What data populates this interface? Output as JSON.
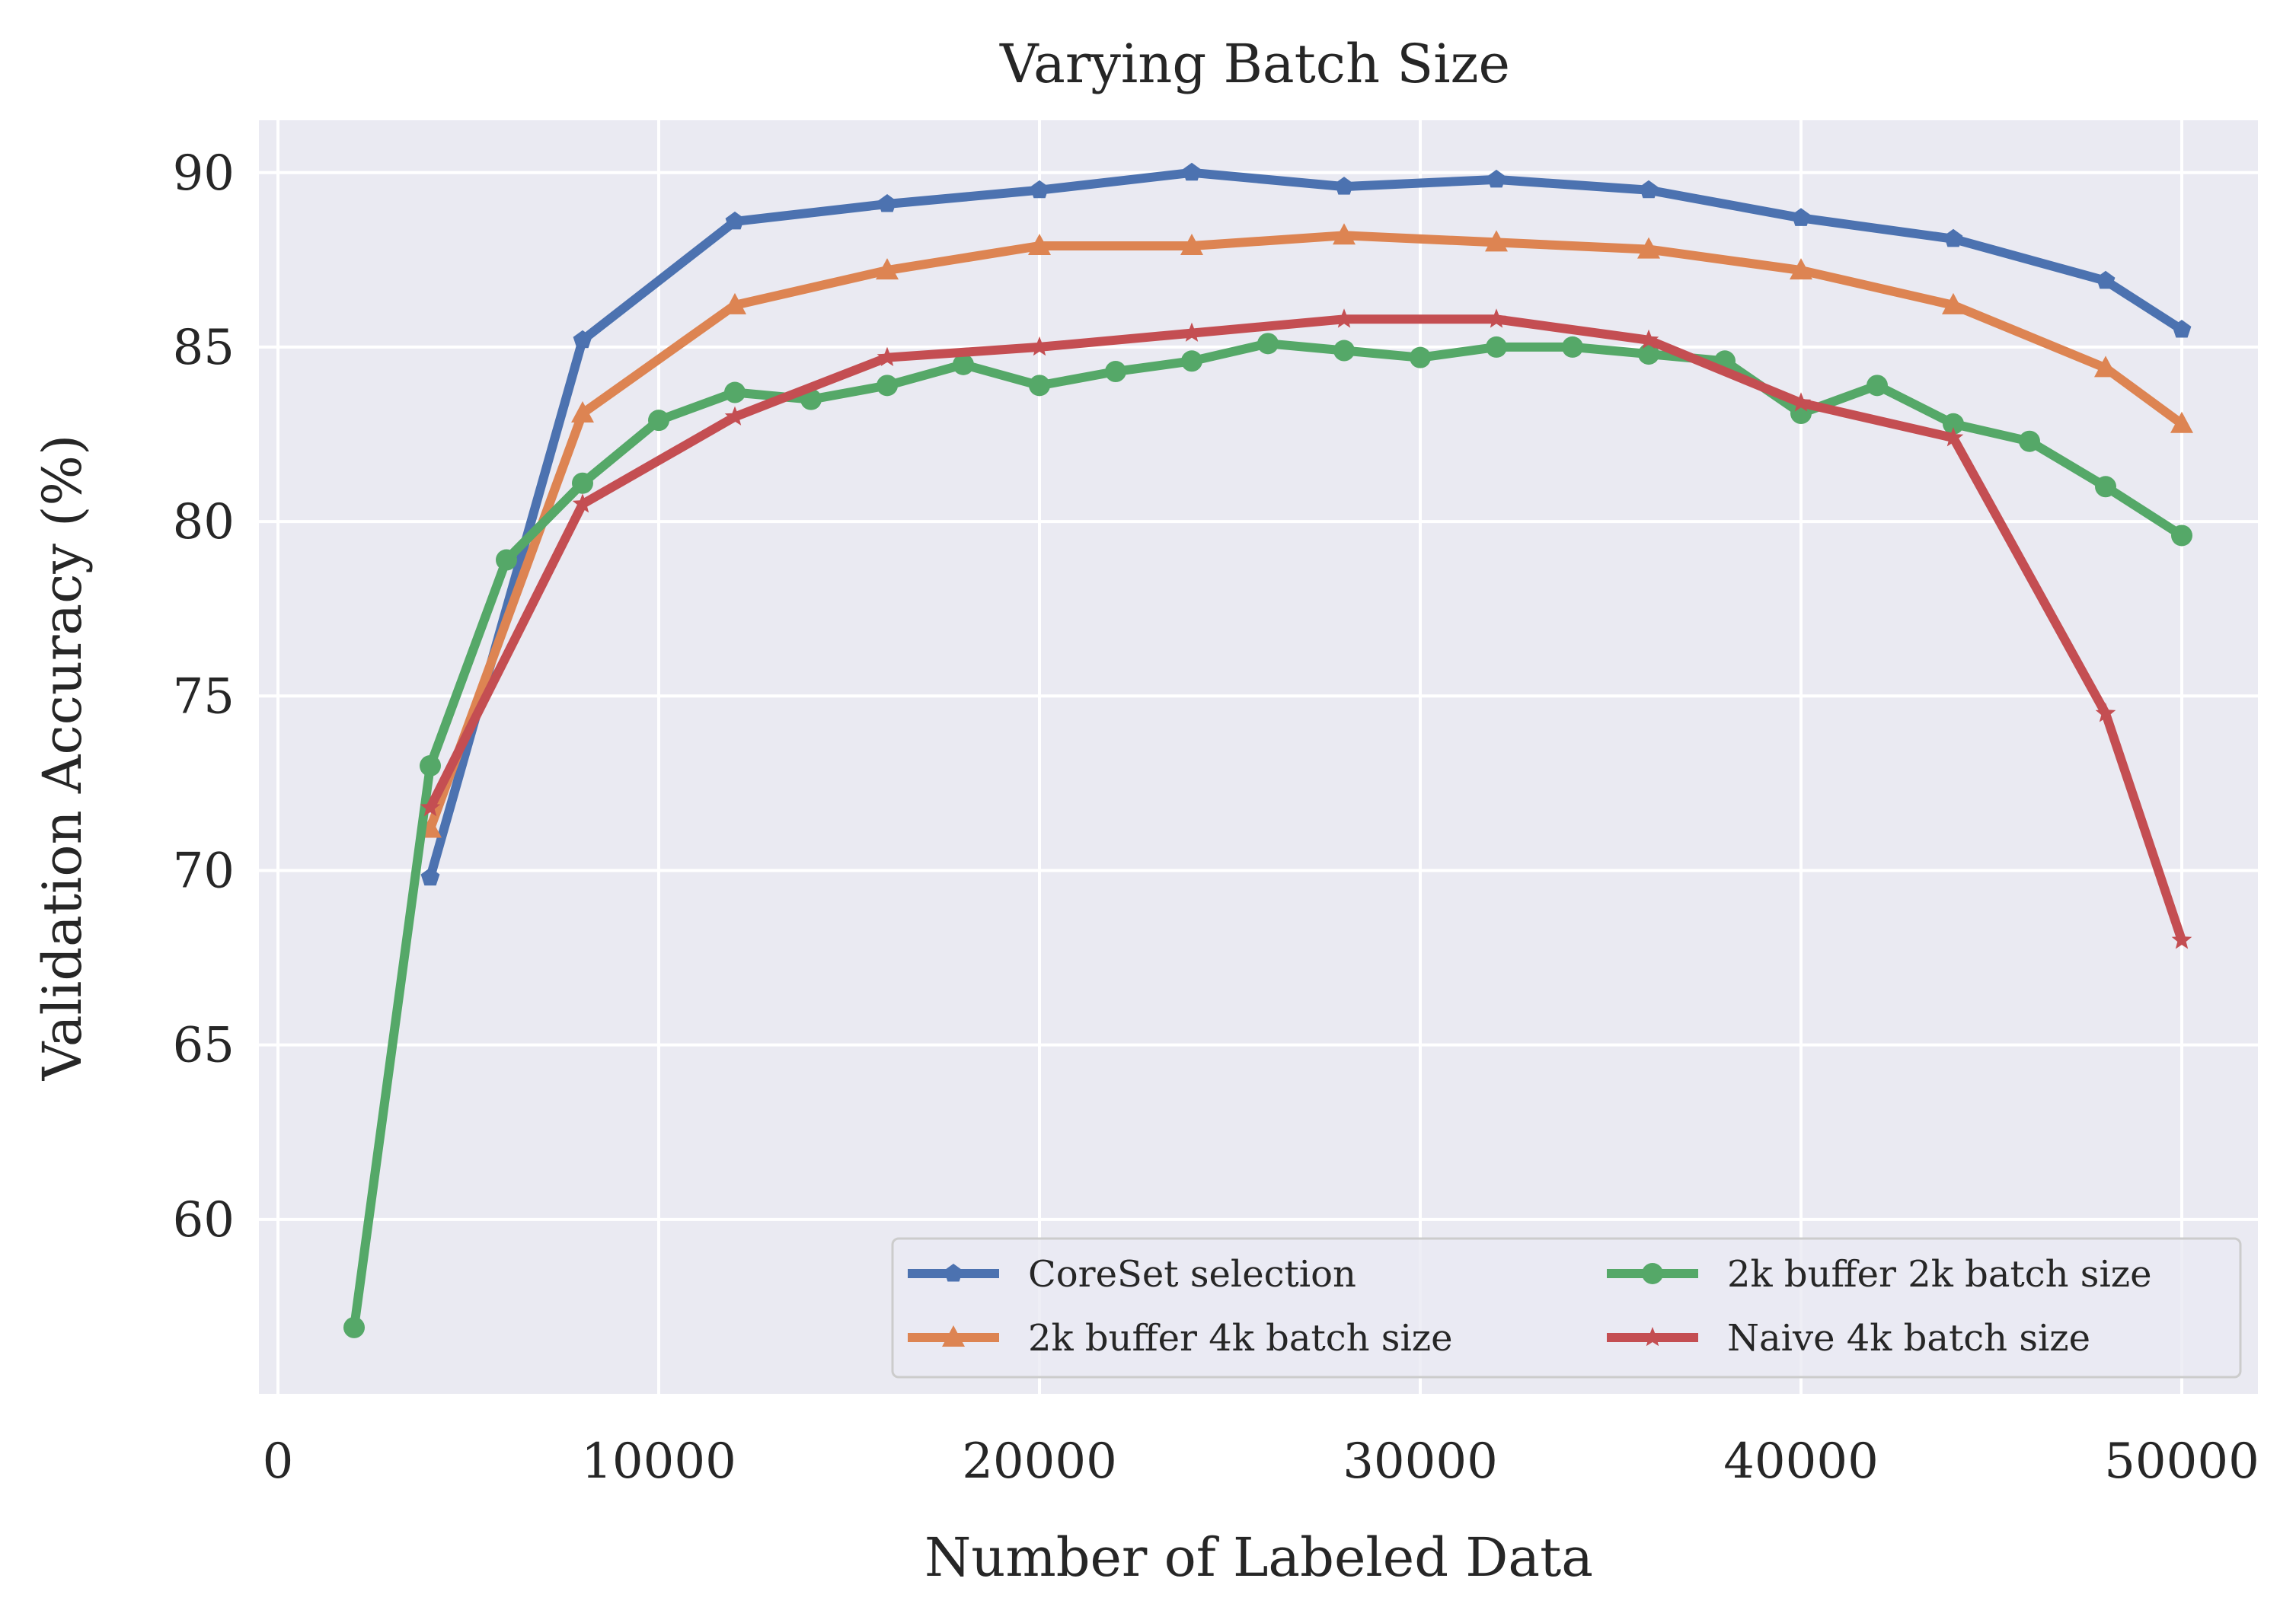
{
  "chart_data": {
    "type": "line",
    "title": "Varying Batch Size",
    "xlabel": "Number of Labeled Data",
    "ylabel": "Validation Accuracy (%)",
    "xlim": [
      -500,
      52000
    ],
    "ylim": [
      55.0,
      91.5
    ],
    "xticks": [
      0,
      10000,
      20000,
      30000,
      40000,
      50000
    ],
    "yticks": [
      60,
      65,
      70,
      75,
      80,
      85,
      90
    ],
    "grid": true,
    "legend": {
      "position": "lower right",
      "columns": 2
    },
    "series": [
      {
        "name": "CoreSet selection",
        "color": "#4c72b0",
        "marker": "pentagon",
        "x": [
          4000,
          8000,
          12000,
          16000,
          20000,
          24000,
          28000,
          32000,
          36000,
          40000,
          44000,
          48000,
          50000
        ],
        "y": [
          69.8,
          85.2,
          88.6,
          89.1,
          89.5,
          90.0,
          89.6,
          89.8,
          89.5,
          88.7,
          88.1,
          86.9,
          85.5
        ]
      },
      {
        "name": "2k buffer 4k batch size",
        "color": "#dd8452",
        "marker": "triangle",
        "x": [
          4000,
          8000,
          12000,
          16000,
          20000,
          24000,
          28000,
          32000,
          36000,
          40000,
          44000,
          48000,
          50000
        ],
        "y": [
          71.2,
          83.1,
          86.2,
          87.2,
          87.9,
          87.9,
          88.2,
          88.0,
          87.8,
          87.2,
          86.2,
          84.4,
          82.8
        ]
      },
      {
        "name": "2k buffer 2k batch size",
        "color": "#55a868",
        "marker": "circle",
        "x": [
          2000,
          4000,
          6000,
          8000,
          10000,
          12000,
          14000,
          16000,
          18000,
          20000,
          22000,
          24000,
          26000,
          28000,
          30000,
          32000,
          34000,
          36000,
          38000,
          40000,
          42000,
          44000,
          46000,
          48000,
          50000
        ],
        "y": [
          56.9,
          73.0,
          78.9,
          81.1,
          82.9,
          83.7,
          83.5,
          83.9,
          84.5,
          83.9,
          84.3,
          84.6,
          85.1,
          84.9,
          84.7,
          85.0,
          85.0,
          84.8,
          84.6,
          83.1,
          83.9,
          82.8,
          82.3,
          81.0,
          79.6
        ]
      },
      {
        "name": "Naive 4k batch size",
        "color": "#c44e52",
        "marker": "star",
        "x": [
          4000,
          8000,
          12000,
          16000,
          20000,
          24000,
          28000,
          32000,
          36000,
          40000,
          44000,
          48000,
          50000
        ],
        "y": [
          71.8,
          80.5,
          83.0,
          84.7,
          85.0,
          85.4,
          85.8,
          85.8,
          85.2,
          83.4,
          82.4,
          74.5,
          68.0
        ]
      }
    ]
  }
}
